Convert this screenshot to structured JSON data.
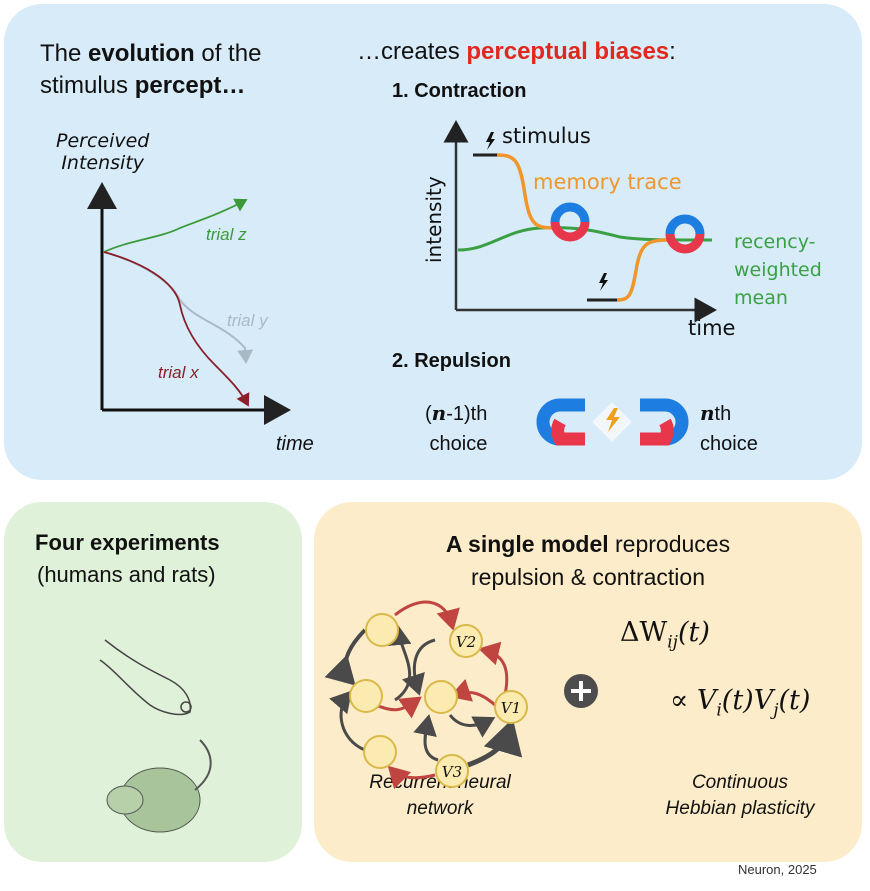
{
  "top_left": {
    "title_pre": "The ",
    "title_bold": "evolution",
    "title_mid": " of the",
    "title_line2_pre": "stimulus ",
    "title_line2_bold": "percept…",
    "ylabel_1": "Perceived",
    "ylabel_2": "Intensity",
    "xlabel": "time",
    "trials": [
      {
        "label": "trial z",
        "color": "#3a9a3a"
      },
      {
        "label": "trial y",
        "color": "#a9b9c6"
      },
      {
        "label": "trial x",
        "color": "#8a1f2a"
      }
    ]
  },
  "top_right": {
    "title_pre": "…creates ",
    "title_red": "perceptual biases",
    "title_post": ":",
    "contraction": {
      "heading": "1. Contraction",
      "ylabel": "intensity",
      "xlabel": "time",
      "stimulus_label": "stimulus",
      "memory_label": "memory trace",
      "mean_label_1": "recency-",
      "mean_label_2": "weighted",
      "mean_label_3": "mean",
      "colors": {
        "memory": "#f0962a",
        "mean": "#3aa043",
        "stimulus": "#222222"
      }
    },
    "repulsion": {
      "heading": "2. Repulsion",
      "left_1_n": "n",
      "left_1_rest": "-1)th",
      "left_1_open": "(",
      "left_2": "choice",
      "right_1_n": "n",
      "right_1_rest": "th",
      "right_2": "choice"
    }
  },
  "bottom_left": {
    "title": "Four experiments",
    "subtitle": "(humans and rats)"
  },
  "bottom_right": {
    "title_bold": "A single model",
    "title_rest": " reproduces",
    "title_line2": "repulsion & contraction",
    "nodes": [
      "V2",
      "V1",
      "V3"
    ],
    "equation_line1": "ΔW",
    "equation_sub": "ij",
    "equation_t": "(t)",
    "equation_line2": "∝ V",
    "rnn_caption_1": "Recurrent neural",
    "rnn_caption_2": "network",
    "hebb_caption_1": "Continuous",
    "hebb_caption_2": "Hebbian plasticity",
    "plus_icon": "plus-circle-icon"
  },
  "citation": "Neuron, 2025"
}
